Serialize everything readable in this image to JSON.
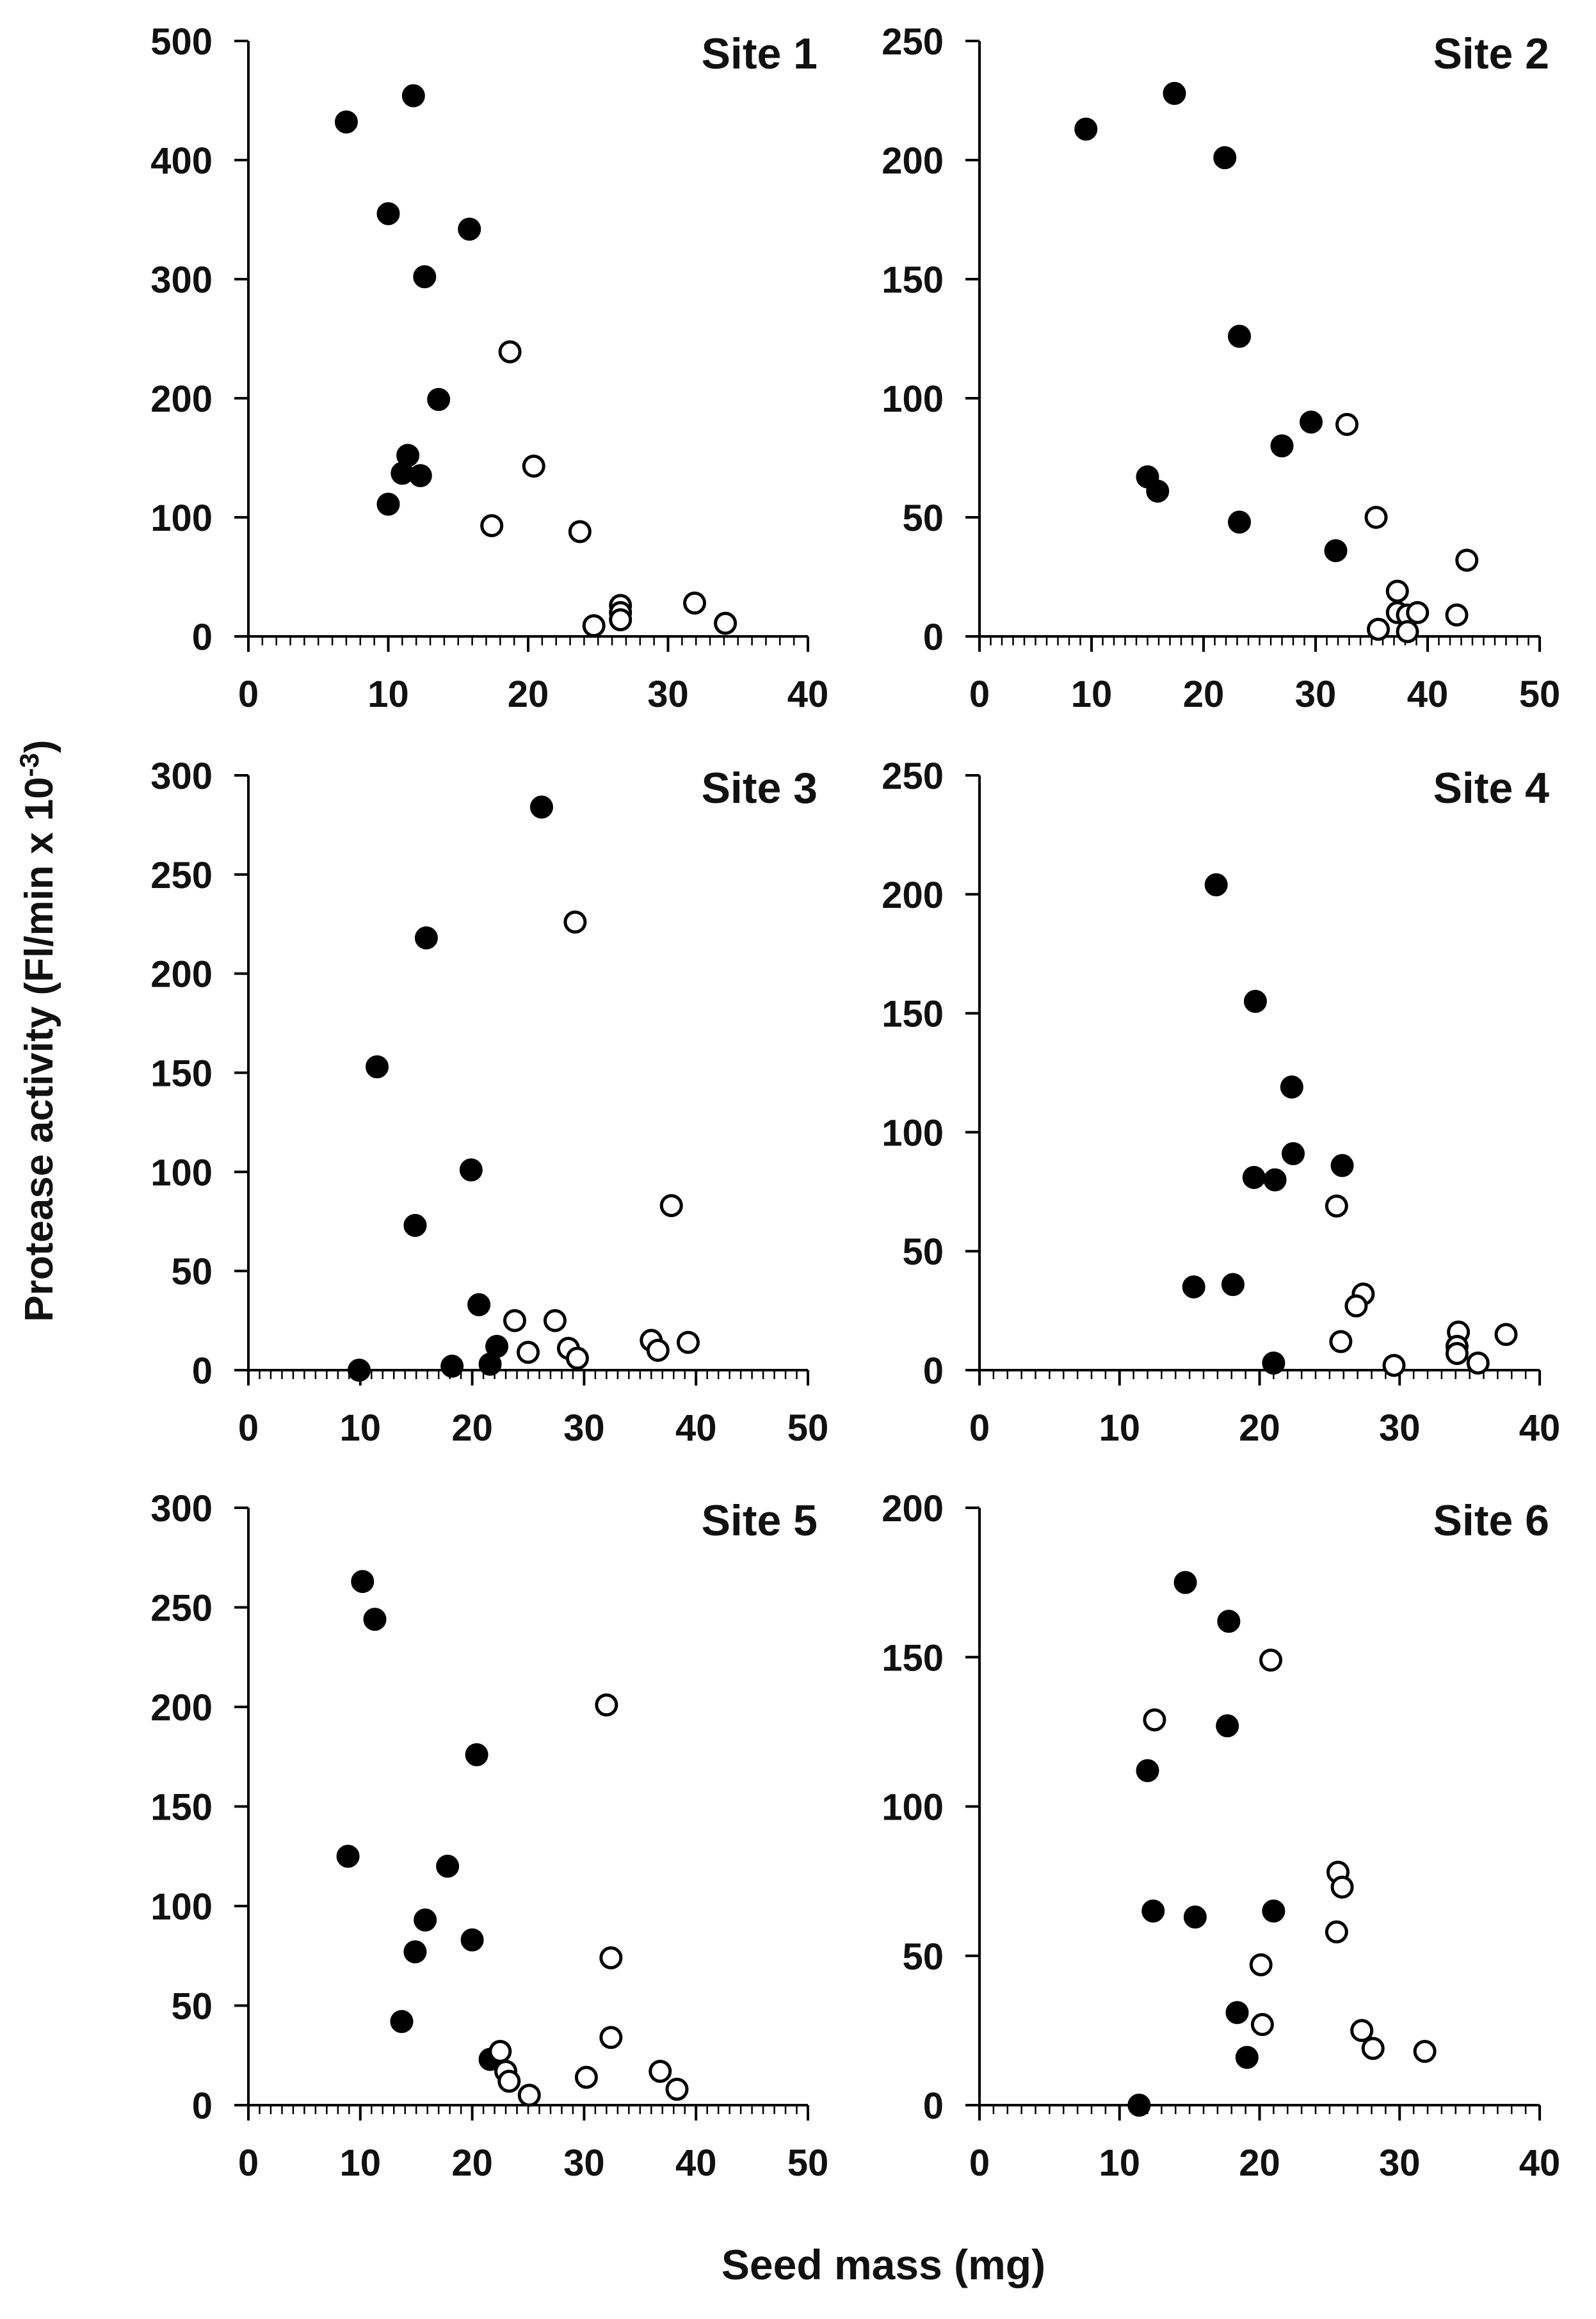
{
  "figure": {
    "ylabel_main": "Protease activity (Fl/min x 10",
    "ylabel_exp": "-3",
    "ylabel_close": ")",
    "xlabel": "Seed mass (mg)",
    "colors": {
      "filled": "#000000",
      "open_fill": "#ffffff",
      "stroke": "#000000",
      "text": "#111111"
    }
  },
  "chart_data": [
    {
      "type": "scatter",
      "title": "Site 1",
      "xlim": [
        0,
        40
      ],
      "ylim": [
        0,
        500
      ],
      "xticks": [
        0,
        10,
        20,
        30,
        40
      ],
      "yticks": [
        0,
        100,
        200,
        300,
        400,
        500
      ],
      "xminor": 1,
      "series": [
        {
          "name": "filled",
          "points": [
            [
              7,
              432
            ],
            [
              11.8,
              454
            ],
            [
              10,
              355
            ],
            [
              15.8,
              342
            ],
            [
              12.6,
              302
            ],
            [
              13.6,
              199
            ],
            [
              11.4,
              152
            ],
            [
              11,
              137
            ],
            [
              12.3,
              135
            ],
            [
              10,
              111
            ]
          ]
        },
        {
          "name": "open",
          "points": [
            [
              18.7,
              239
            ],
            [
              20.4,
              143
            ],
            [
              17.4,
              93
            ],
            [
              23.7,
              88
            ],
            [
              26.6,
              26
            ],
            [
              26.6,
              20
            ],
            [
              26.6,
              14
            ],
            [
              24.7,
              9
            ],
            [
              31.9,
              28
            ],
            [
              34.1,
              11
            ]
          ]
        }
      ]
    },
    {
      "type": "scatter",
      "title": "Site 2",
      "xlim": [
        0,
        50
      ],
      "ylim": [
        0,
        250
      ],
      "xticks": [
        0,
        10,
        20,
        30,
        40,
        50
      ],
      "yticks": [
        0,
        50,
        100,
        150,
        200,
        250
      ],
      "xminor": 1,
      "series": [
        {
          "name": "filled",
          "points": [
            [
              9.5,
              213
            ],
            [
              17.4,
              228
            ],
            [
              21.9,
              201
            ],
            [
              23.2,
              126
            ],
            [
              29.6,
              90
            ],
            [
              27,
              80
            ],
            [
              15,
              67
            ],
            [
              15.9,
              61
            ],
            [
              23.2,
              48
            ],
            [
              31.8,
              36
            ]
          ]
        },
        {
          "name": "open",
          "points": [
            [
              32.8,
              89
            ],
            [
              35.4,
              50
            ],
            [
              43.5,
              32
            ],
            [
              37.3,
              19
            ],
            [
              37.3,
              10
            ],
            [
              38.2,
              9
            ],
            [
              39.1,
              10
            ],
            [
              42.6,
              9
            ],
            [
              35.6,
              3
            ],
            [
              38.2,
              2
            ]
          ]
        }
      ]
    },
    {
      "type": "scatter",
      "title": "Site 3",
      "xlim": [
        0,
        50
      ],
      "ylim": [
        0,
        300
      ],
      "xticks": [
        0,
        10,
        20,
        30,
        40,
        50
      ],
      "yticks": [
        0,
        50,
        100,
        150,
        200,
        250,
        300
      ],
      "xminor": 1,
      "series": [
        {
          "name": "filled",
          "points": [
            [
              26.2,
              284
            ],
            [
              15.9,
              218
            ],
            [
              11.5,
              153
            ],
            [
              19.9,
              101
            ],
            [
              14.9,
              73
            ],
            [
              20.6,
              33
            ],
            [
              22.2,
              12
            ],
            [
              21.6,
              3
            ],
            [
              18.2,
              2
            ],
            [
              9.9,
              0
            ]
          ]
        },
        {
          "name": "open",
          "points": [
            [
              29.2,
              226
            ],
            [
              37.8,
              83
            ],
            [
              23.8,
              25
            ],
            [
              27.4,
              25
            ],
            [
              25,
              9
            ],
            [
              28.6,
              11
            ],
            [
              29.4,
              6
            ],
            [
              36,
              15
            ],
            [
              36.6,
              10
            ],
            [
              39.3,
              14
            ]
          ]
        }
      ]
    },
    {
      "type": "scatter",
      "title": "Site 4",
      "xlim": [
        0,
        40
      ],
      "ylim": [
        0,
        250
      ],
      "xticks": [
        0,
        10,
        20,
        30,
        40
      ],
      "yticks": [
        0,
        50,
        100,
        150,
        200,
        250
      ],
      "xminor": 1,
      "series": [
        {
          "name": "filled",
          "points": [
            [
              16.9,
              204
            ],
            [
              19.7,
              155
            ],
            [
              22.3,
              119
            ],
            [
              22.4,
              91
            ],
            [
              19.6,
              81
            ],
            [
              21.1,
              80
            ],
            [
              25.9,
              86
            ],
            [
              15.3,
              35
            ],
            [
              18.1,
              36
            ],
            [
              21,
              3
            ]
          ]
        },
        {
          "name": "open",
          "points": [
            [
              25.5,
              69
            ],
            [
              27.4,
              32
            ],
            [
              26.9,
              27
            ],
            [
              25.8,
              12
            ],
            [
              34.2,
              16
            ],
            [
              34.1,
              10
            ],
            [
              34.1,
              7
            ],
            [
              37.6,
              15
            ],
            [
              35.6,
              3
            ],
            [
              29.6,
              2
            ]
          ]
        }
      ]
    },
    {
      "type": "scatter",
      "title": "Site 5",
      "xlim": [
        0,
        50
      ],
      "ylim": [
        0,
        300
      ],
      "xticks": [
        0,
        10,
        20,
        30,
        40,
        50
      ],
      "yticks": [
        0,
        50,
        100,
        150,
        200,
        250,
        300
      ],
      "xminor": 1,
      "series": [
        {
          "name": "filled",
          "points": [
            [
              10.2,
              263
            ],
            [
              11.3,
              244
            ],
            [
              20.4,
              176
            ],
            [
              8.9,
              125
            ],
            [
              17.8,
              120
            ],
            [
              15.8,
              93
            ],
            [
              14.9,
              77
            ],
            [
              20,
              83
            ],
            [
              13.7,
              42
            ],
            [
              21.6,
              23
            ]
          ]
        },
        {
          "name": "open",
          "points": [
            [
              32,
              201
            ],
            [
              32.4,
              74
            ],
            [
              32.4,
              34
            ],
            [
              22.5,
              27
            ],
            [
              23,
              17
            ],
            [
              23.3,
              12
            ],
            [
              25.1,
              5
            ],
            [
              30.2,
              14
            ],
            [
              36.8,
              17
            ],
            [
              38.3,
              8
            ]
          ]
        }
      ]
    },
    {
      "type": "scatter",
      "title": "Site 6",
      "xlim": [
        0,
        40
      ],
      "ylim": [
        0,
        200
      ],
      "xticks": [
        0,
        10,
        20,
        30,
        40
      ],
      "yticks": [
        0,
        50,
        100,
        150,
        200
      ],
      "xminor": 1,
      "series": [
        {
          "name": "filled",
          "points": [
            [
              14.7,
              175
            ],
            [
              17.8,
              162
            ],
            [
              17.7,
              127
            ],
            [
              12,
              112
            ],
            [
              12.4,
              65
            ],
            [
              15.4,
              63
            ],
            [
              21,
              65
            ],
            [
              18.4,
              31
            ],
            [
              19.1,
              16
            ],
            [
              11.4,
              0
            ]
          ]
        },
        {
          "name": "open",
          "points": [
            [
              12.5,
              129
            ],
            [
              20.8,
              149
            ],
            [
              25.6,
              78
            ],
            [
              25.9,
              73
            ],
            [
              25.5,
              58
            ],
            [
              20.1,
              47
            ],
            [
              20.2,
              27
            ],
            [
              27.3,
              25
            ],
            [
              28.1,
              19
            ],
            [
              31.8,
              18
            ]
          ]
        }
      ]
    }
  ]
}
